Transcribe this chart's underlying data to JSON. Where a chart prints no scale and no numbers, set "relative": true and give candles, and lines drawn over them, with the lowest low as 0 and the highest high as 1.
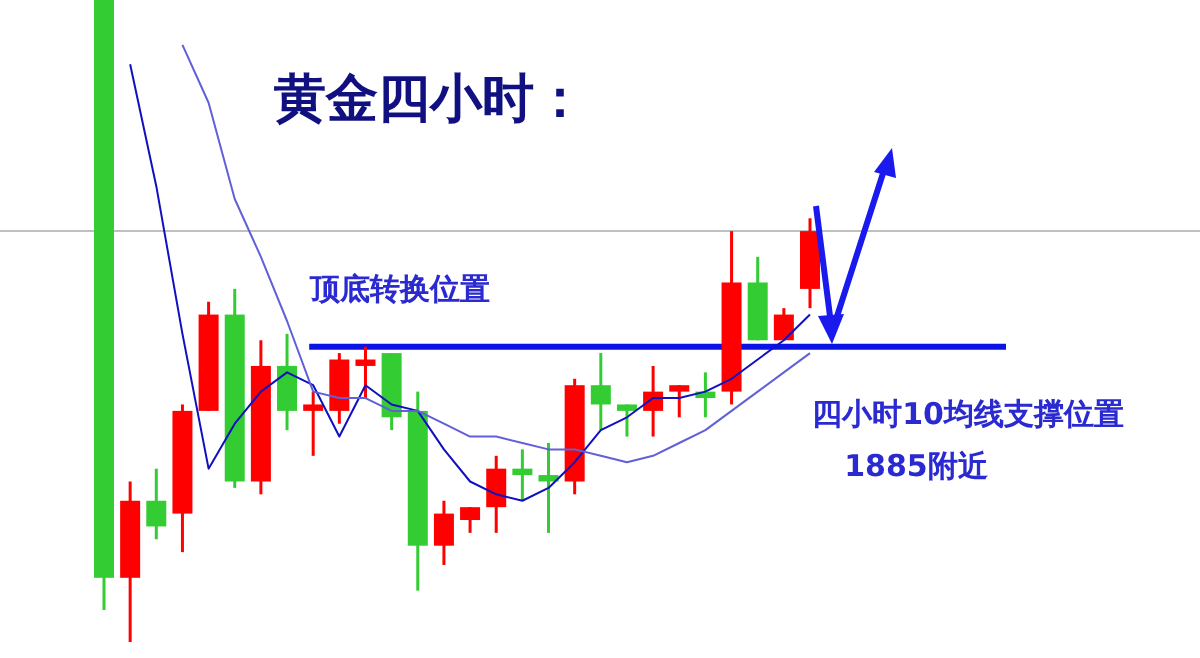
{
  "chart_data": {
    "type": "candlestick",
    "title": "黄金四小时：",
    "relative": true,
    "categories": [
      null,
      null,
      null,
      null,
      null,
      null,
      null,
      null,
      null,
      null,
      null,
      null,
      null,
      null,
      null,
      null,
      null,
      null,
      null,
      null,
      null,
      null,
      null,
      null,
      null,
      null,
      null,
      null
    ],
    "ohlc": [
      [
        1,
        1,
        0.05,
        0.1
      ],
      [
        0.1,
        0.25,
        0,
        0.22
      ],
      [
        0.22,
        0.27,
        0.16,
        0.18
      ],
      [
        0.2,
        0.37,
        0.14,
        0.36
      ],
      [
        0.36,
        0.53,
        0.36,
        0.51
      ],
      [
        0.51,
        0.55,
        0.24,
        0.25
      ],
      [
        0.25,
        0.47,
        0.23,
        0.43
      ],
      [
        0.43,
        0.48,
        0.33,
        0.36
      ],
      [
        0.36,
        0.39,
        0.29,
        0.37
      ],
      [
        0.36,
        0.45,
        0.34,
        0.44
      ],
      [
        0.43,
        0.46,
        0.38,
        0.44
      ],
      [
        0.45,
        0.45,
        0.33,
        0.35
      ],
      [
        0.36,
        0.39,
        0.08,
        0.15
      ],
      [
        0.15,
        0.22,
        0.12,
        0.2
      ],
      [
        0.19,
        0.21,
        0.17,
        0.21
      ],
      [
        0.21,
        0.29,
        0.17,
        0.27
      ],
      [
        0.27,
        0.3,
        0.22,
        0.26
      ],
      [
        0.26,
        0.31,
        0.17,
        0.25
      ],
      [
        0.25,
        0.41,
        0.23,
        0.4
      ],
      [
        0.4,
        0.45,
        0.33,
        0.37
      ],
      [
        0.37,
        0.37,
        0.32,
        0.36
      ],
      [
        0.36,
        0.43,
        0.32,
        0.39
      ],
      [
        0.39,
        0.4,
        0.35,
        0.4
      ],
      [
        0.39,
        0.42,
        0.35,
        0.38
      ],
      [
        0.39,
        0.64,
        0.37,
        0.56
      ],
      [
        0.56,
        0.6,
        0.47,
        0.47
      ],
      [
        0.47,
        0.52,
        0.47,
        0.51
      ],
      [
        0.55,
        0.66,
        0.52,
        0.64
      ]
    ],
    "series": [
      {
        "type": "line",
        "color": "#1010c0",
        "values": [
          null,
          0.9,
          0.71,
          0.48,
          0.27,
          0.34,
          0.39,
          0.42,
          0.4,
          0.32,
          0.4,
          0.37,
          0.36,
          0.3,
          0.25,
          0.23,
          0.22,
          0.24,
          0.28,
          0.33,
          0.35,
          0.38,
          0.38,
          0.39,
          0.41,
          0.44,
          0.47,
          0.51
        ]
      },
      {
        "type": "line",
        "color": "#6060d8",
        "values": [
          null,
          null,
          null,
          0.93,
          0.84,
          0.69,
          0.6,
          0.5,
          0.39,
          0.38,
          0.38,
          0.36,
          0.36,
          0.34,
          0.32,
          0.32,
          0.31,
          0.3,
          0.3,
          0.29,
          0.28,
          0.29,
          0.31,
          0.33,
          0.36,
          0.39,
          0.42,
          0.45
        ]
      }
    ],
    "ref_lines": [
      {
        "axis": "y",
        "value": 0.64,
        "color": "#c0c0c0"
      },
      {
        "axis": "y",
        "value": 0.46,
        "label": "顶底转换位置",
        "color": "#0a14e6"
      }
    ],
    "annotations": [
      "四小时10均线支撑位置",
      "1885附近"
    ]
  }
}
